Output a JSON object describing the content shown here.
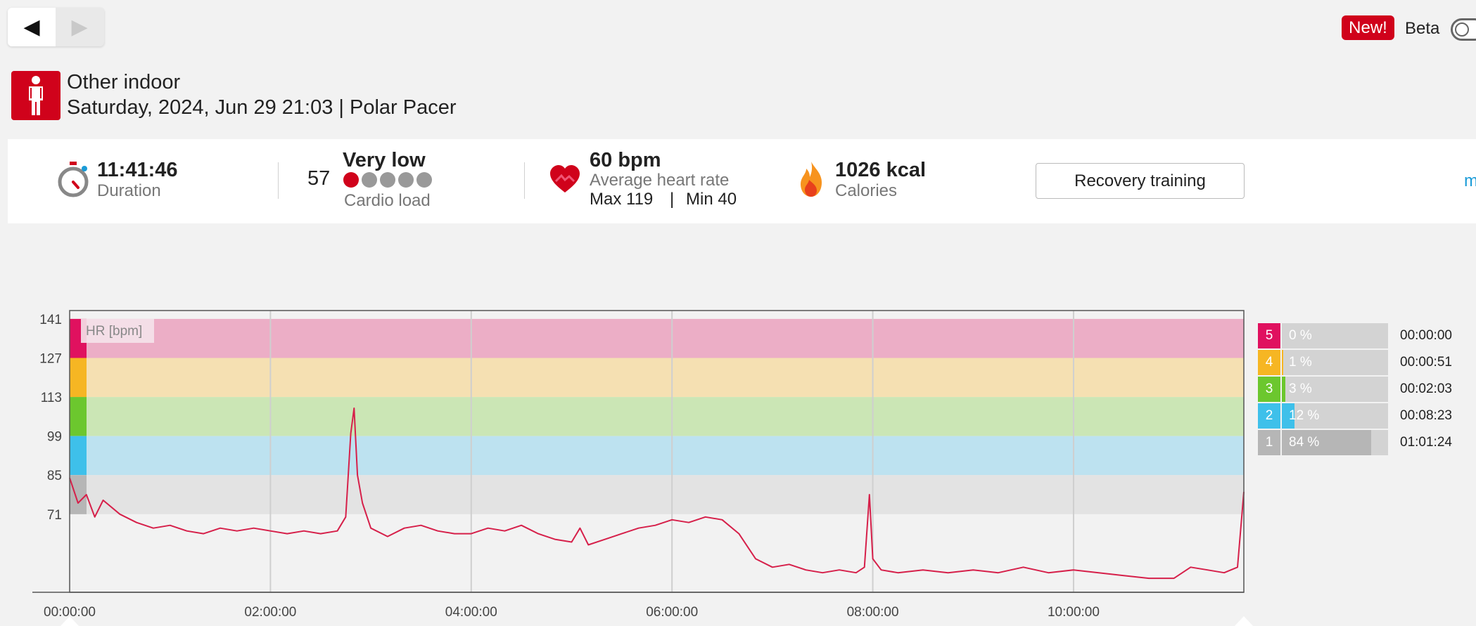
{
  "nav": {
    "back_glyph": "◀",
    "forward_glyph": "▶"
  },
  "header": {
    "new_badge": "New!",
    "beta_label": "Beta",
    "beta_enabled": false
  },
  "session": {
    "sport_icon": "person-standing-icon",
    "sport_name": "Other indoor",
    "subtitle": "Saturday, 2024, Jun 29 21:03 | Polar Pacer"
  },
  "summary": {
    "duration": {
      "value": "11:41:46",
      "label": "Duration",
      "icon": "stopwatch-icon"
    },
    "cardio": {
      "value": "57",
      "level": "Very low",
      "label": "Cardio load",
      "filled_dots": 1,
      "total_dots": 5
    },
    "heart": {
      "value": "60 bpm",
      "label": "Average heart rate",
      "max_label": "Max 119",
      "separator": "|",
      "min_label": "Min 40",
      "icon": "heart-icon"
    },
    "calories": {
      "value": "1026 kcal",
      "label": "Calories",
      "icon": "flame-icon"
    },
    "benefit_button": "Recovery training",
    "more_link": "more"
  },
  "chart_data": {
    "type": "area",
    "title": "HR [bpm]",
    "ylabel": "HR [bpm]",
    "ylim": [
      43,
      144
    ],
    "xlim_seconds": [
      0,
      42106
    ],
    "y_ticks": [
      "141",
      "127",
      "113",
      "99",
      "85",
      "71"
    ],
    "x_ticks": [
      "00:00:00",
      "02:00:00",
      "04:00:00",
      "06:00:00",
      "08:00:00",
      "10:00:00"
    ],
    "zone_bands": [
      {
        "zone": 5,
        "from": 127,
        "to": 141,
        "color": "#ecaec6",
        "marker": "#e0115f"
      },
      {
        "zone": 4,
        "from": 113,
        "to": 127,
        "color": "#f5e0b2",
        "marker": "#f6b623"
      },
      {
        "zone": 3,
        "from": 99,
        "to": 113,
        "color": "#cbe6b5",
        "marker": "#6cc72e"
      },
      {
        "zone": 2,
        "from": 85,
        "to": 99,
        "color": "#bde2f0",
        "marker": "#3ec0ea"
      },
      {
        "zone": 1,
        "from": 71,
        "to": 85,
        "color": "#e3e3e3",
        "marker": "#b6b6b6"
      }
    ],
    "series": [
      {
        "color": "#d6204a",
        "points": [
          [
            "00:00:00",
            84
          ],
          [
            "00:05:00",
            75
          ],
          [
            "00:10:00",
            78
          ],
          [
            "00:15:00",
            70
          ],
          [
            "00:20:00",
            76
          ],
          [
            "00:30:00",
            71
          ],
          [
            "00:40:00",
            68
          ],
          [
            "00:50:00",
            66
          ],
          [
            "01:00:00",
            67
          ],
          [
            "01:10:00",
            65
          ],
          [
            "01:20:00",
            64
          ],
          [
            "01:30:00",
            66
          ],
          [
            "01:40:00",
            65
          ],
          [
            "01:50:00",
            66
          ],
          [
            "02:00:00",
            65
          ],
          [
            "02:10:00",
            64
          ],
          [
            "02:20:00",
            65
          ],
          [
            "02:30:00",
            64
          ],
          [
            "02:40:00",
            65
          ],
          [
            "02:45:00",
            70
          ],
          [
            "02:48:00",
            100
          ],
          [
            "02:50:00",
            109
          ],
          [
            "02:52:00",
            85
          ],
          [
            "02:55:00",
            75
          ],
          [
            "03:00:00",
            66
          ],
          [
            "03:10:00",
            63
          ],
          [
            "03:20:00",
            66
          ],
          [
            "03:30:00",
            67
          ],
          [
            "03:40:00",
            65
          ],
          [
            "03:50:00",
            64
          ],
          [
            "04:00:00",
            64
          ],
          [
            "04:10:00",
            66
          ],
          [
            "04:20:00",
            65
          ],
          [
            "04:30:00",
            67
          ],
          [
            "04:40:00",
            64
          ],
          [
            "04:50:00",
            62
          ],
          [
            "05:00:00",
            61
          ],
          [
            "05:05:00",
            66
          ],
          [
            "05:10:00",
            60
          ],
          [
            "05:20:00",
            62
          ],
          [
            "05:30:00",
            64
          ],
          [
            "05:40:00",
            66
          ],
          [
            "05:50:00",
            67
          ],
          [
            "06:00:00",
            69
          ],
          [
            "06:10:00",
            68
          ],
          [
            "06:20:00",
            70
          ],
          [
            "06:30:00",
            69
          ],
          [
            "06:40:00",
            64
          ],
          [
            "06:50:00",
            55
          ],
          [
            "07:00:00",
            52
          ],
          [
            "07:10:00",
            53
          ],
          [
            "07:20:00",
            51
          ],
          [
            "07:30:00",
            50
          ],
          [
            "07:40:00",
            51
          ],
          [
            "07:50:00",
            50
          ],
          [
            "07:55:00",
            52
          ],
          [
            "07:58:00",
            78
          ],
          [
            "08:00:00",
            55
          ],
          [
            "08:05:00",
            51
          ],
          [
            "08:15:00",
            50
          ],
          [
            "08:30:00",
            51
          ],
          [
            "08:45:00",
            50
          ],
          [
            "09:00:00",
            51
          ],
          [
            "09:15:00",
            50
          ],
          [
            "09:30:00",
            52
          ],
          [
            "09:45:00",
            50
          ],
          [
            "10:00:00",
            51
          ],
          [
            "10:15:00",
            50
          ],
          [
            "10:30:00",
            49
          ],
          [
            "10:45:00",
            48
          ],
          [
            "11:00:00",
            48
          ],
          [
            "11:10:00",
            52
          ],
          [
            "11:20:00",
            51
          ],
          [
            "11:30:00",
            50
          ],
          [
            "11:38:00",
            52
          ],
          [
            "11:41:46",
            79
          ]
        ]
      }
    ],
    "grid": true,
    "legend": "none"
  },
  "zones": [
    {
      "zone": "5",
      "percent_label": "0 %",
      "percent": 0,
      "time": "00:00:00",
      "color": "#e0115f"
    },
    {
      "zone": "4",
      "percent_label": "1 %",
      "percent": 1,
      "time": "00:00:51",
      "color": "#f6b623"
    },
    {
      "zone": "3",
      "percent_label": "3 %",
      "percent": 3,
      "time": "00:02:03",
      "color": "#6cc72e"
    },
    {
      "zone": "2",
      "percent_label": "12 %",
      "percent": 12,
      "time": "00:08:23",
      "color": "#3ec0ea"
    },
    {
      "zone": "1",
      "percent_label": "84 %",
      "percent": 84,
      "time": "01:01:24",
      "color": "#b6b6b6"
    }
  ]
}
